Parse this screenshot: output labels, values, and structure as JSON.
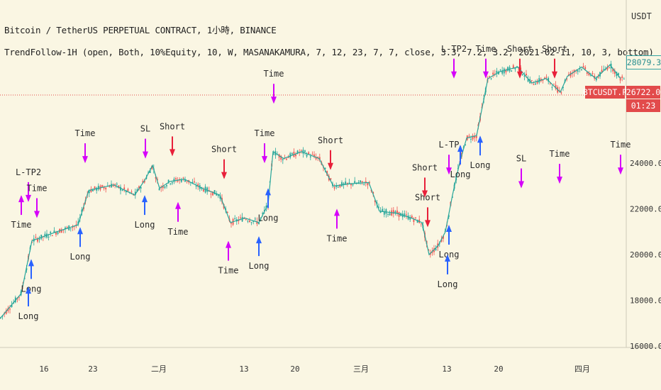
{
  "header": {
    "symbol_line": "Bitcoin / TetherUS PERPETUAL CONTRACT, 1小時, BINANCE",
    "strategy_line": "TrendFollow-1H (open, Both, 10%Equity, 10, W, MASANAKAMURA, 7, 12, 23, 7, 7, close, 3.3, 7.2, 3.2, 2021-02-11, 10, 3, bottom)"
  },
  "price_axis": {
    "unit": "USDT",
    "ticks": [
      "24000.0",
      "22000.0",
      "20000.0",
      "18000.0",
      "16000.0"
    ],
    "last_price": "28079.3",
    "mark_symbol": "BTCUSDT.P",
    "mark_price": "26722.0",
    "countdown": "01:23"
  },
  "colors": {
    "background": "#faf6e3",
    "up_candle": "#26a69a",
    "down_candle": "#ef5350",
    "long_arrow": "#2962ff",
    "short_arrow": "#e8203a",
    "exit_marker": "#d500f9",
    "mark_line": "#e24b4b"
  },
  "chart_data": {
    "type": "line",
    "title": "Bitcoin / TetherUS PERPETUAL CONTRACT, 1小時, BINANCE",
    "xlabel": "",
    "ylabel": "USDT",
    "x_ticks": [
      "16",
      "23",
      "二月",
      "13",
      "20",
      "三月",
      "13",
      "20",
      "四月"
    ],
    "ylim": [
      15900,
      29000
    ],
    "grid": false,
    "series": [
      {
        "values": [
          [
            0,
            17200
          ],
          [
            30,
            18300
          ],
          [
            45,
            20600
          ],
          [
            80,
            21000
          ],
          [
            110,
            21300
          ],
          [
            125,
            22800
          ],
          [
            160,
            23050
          ],
          [
            190,
            22600
          ],
          [
            205,
            23300
          ],
          [
            215,
            23900
          ],
          [
            225,
            22900
          ],
          [
            240,
            23200
          ],
          [
            260,
            23300
          ],
          [
            285,
            22900
          ],
          [
            310,
            22600
          ],
          [
            325,
            21400
          ],
          [
            345,
            21600
          ],
          [
            365,
            21400
          ],
          [
            378,
            22200
          ],
          [
            385,
            24500
          ],
          [
            400,
            24200
          ],
          [
            425,
            24500
          ],
          [
            450,
            24200
          ],
          [
            470,
            23000
          ],
          [
            495,
            23100
          ],
          [
            520,
            23150
          ],
          [
            535,
            21900
          ],
          [
            560,
            21800
          ],
          [
            580,
            21600
          ],
          [
            595,
            21400
          ],
          [
            605,
            20000
          ],
          [
            618,
            20400
          ],
          [
            628,
            21000
          ],
          [
            638,
            22600
          ],
          [
            648,
            24000
          ],
          [
            658,
            25100
          ],
          [
            672,
            25200
          ],
          [
            688,
            27700
          ],
          [
            705,
            28000
          ],
          [
            730,
            28200
          ],
          [
            750,
            27500
          ],
          [
            770,
            27700
          ],
          [
            790,
            27100
          ],
          [
            800,
            27800
          ],
          [
            820,
            28200
          ],
          [
            840,
            27700
          ],
          [
            860,
            28300
          ],
          [
            875,
            27700
          ]
        ]
      }
    ],
    "annotations": [
      {
        "x": 30,
        "y": 21300,
        "text": "Time"
      },
      {
        "x": 40,
        "y": 23600,
        "text": "L-TP2"
      },
      {
        "x": 52,
        "y": 22900,
        "text": "Time"
      },
      {
        "x": 120,
        "y": 25300,
        "text": "Time"
      },
      {
        "x": 205,
        "y": 25500,
        "text": "SL"
      },
      {
        "x": 243,
        "y": 25600,
        "text": "Short"
      },
      {
        "x": 316,
        "y": 24600,
        "text": "Short"
      },
      {
        "x": 373,
        "y": 25300,
        "text": "Time"
      },
      {
        "x": 386,
        "y": 27900,
        "text": "Time"
      },
      {
        "x": 466,
        "y": 25000,
        "text": "Short"
      },
      {
        "x": 599,
        "y": 23800,
        "text": "Short"
      },
      {
        "x": 603,
        "y": 22500,
        "text": "Short"
      },
      {
        "x": 633,
        "y": 24800,
        "text": "L-TP"
      },
      {
        "x": 640,
        "y": 29000,
        "text": "L-TP2"
      },
      {
        "x": 685,
        "y": 29000,
        "text": "Time"
      },
      {
        "x": 733,
        "y": 29000,
        "text": "Short"
      },
      {
        "x": 782,
        "y": 29000,
        "text": "Short"
      },
      {
        "x": 875,
        "y": 24800,
        "text": "Time"
      },
      {
        "x": 113,
        "y": 19900,
        "text": "Long"
      },
      {
        "x": 204,
        "y": 21300,
        "text": "Long"
      },
      {
        "x": 251,
        "y": 21000,
        "text": "Time"
      },
      {
        "x": 322,
        "y": 19300,
        "text": "Time"
      },
      {
        "x": 365,
        "y": 19500,
        "text": "Long"
      },
      {
        "x": 378,
        "y": 21600,
        "text": "Long"
      },
      {
        "x": 475,
        "y": 20700,
        "text": "Time"
      },
      {
        "x": 633,
        "y": 20000,
        "text": "Long"
      },
      {
        "x": 631,
        "y": 18700,
        "text": "Long"
      },
      {
        "x": 649,
        "y": 23500,
        "text": "Long"
      },
      {
        "x": 677,
        "y": 23900,
        "text": "Long"
      },
      {
        "x": 735,
        "y": 24200,
        "text": "SL"
      },
      {
        "x": 789,
        "y": 24400,
        "text": "Time"
      },
      {
        "x": 44,
        "y": 18500,
        "text": "Long"
      },
      {
        "x": 40,
        "y": 17300,
        "text": "Long"
      }
    ]
  }
}
